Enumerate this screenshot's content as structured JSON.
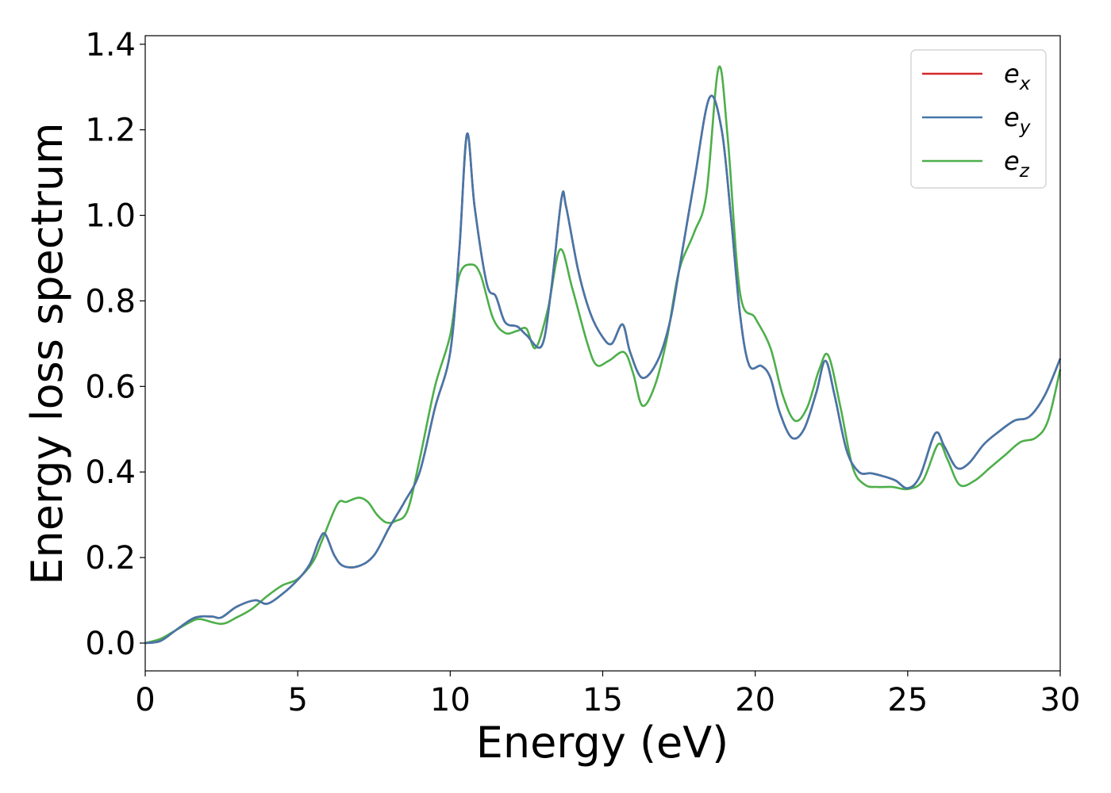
{
  "chart_data": {
    "type": "line",
    "title": "",
    "xlabel": "Energy (eV)",
    "ylabel": "Energy loss spectrum",
    "xlim": [
      0,
      30
    ],
    "ylim": [
      -0.065,
      1.42
    ],
    "xticks": [
      0,
      5,
      10,
      15,
      20,
      25,
      30
    ],
    "xtick_labels": [
      "0",
      "5",
      "10",
      "15",
      "20",
      "25",
      "30"
    ],
    "yticks": [
      0.0,
      0.2,
      0.4,
      0.6,
      0.8,
      1.0,
      1.2,
      1.4
    ],
    "ytick_labels": [
      "0.0",
      "0.2",
      "0.4",
      "0.6",
      "0.8",
      "1.0",
      "1.2",
      "1.4"
    ],
    "grid": false,
    "legend_position": "top-right",
    "series": [
      {
        "name": "e_x",
        "label_main": "e",
        "label_sub": "x",
        "color": "#d62728",
        "points": [
          [
            0,
            0
          ],
          [
            0.5,
            0.005
          ],
          [
            1,
            0.03
          ],
          [
            1.5,
            0.055
          ],
          [
            1.8,
            0.062
          ],
          [
            2.2,
            0.062
          ],
          [
            2.5,
            0.06
          ],
          [
            3,
            0.085
          ],
          [
            3.6,
            0.1
          ],
          [
            4,
            0.092
          ],
          [
            4.5,
            0.115
          ],
          [
            5,
            0.148
          ],
          [
            5.4,
            0.185
          ],
          [
            5.7,
            0.24
          ],
          [
            5.9,
            0.255
          ],
          [
            6.2,
            0.205
          ],
          [
            6.5,
            0.18
          ],
          [
            7,
            0.18
          ],
          [
            7.5,
            0.205
          ],
          [
            8,
            0.27
          ],
          [
            8.5,
            0.33
          ],
          [
            9,
            0.4
          ],
          [
            9.5,
            0.55
          ],
          [
            10,
            0.68
          ],
          [
            10.3,
            0.92
          ],
          [
            10.55,
            1.19
          ],
          [
            10.8,
            1.02
          ],
          [
            11.2,
            0.84
          ],
          [
            11.5,
            0.81
          ],
          [
            11.8,
            0.75
          ],
          [
            12.2,
            0.74
          ],
          [
            12.5,
            0.72
          ],
          [
            13,
            0.695
          ],
          [
            13.3,
            0.82
          ],
          [
            13.65,
            1.04
          ],
          [
            13.8,
            1.02
          ],
          [
            14.2,
            0.87
          ],
          [
            14.6,
            0.77
          ],
          [
            15,
            0.715
          ],
          [
            15.3,
            0.7
          ],
          [
            15.65,
            0.745
          ],
          [
            15.9,
            0.68
          ],
          [
            16.3,
            0.62
          ],
          [
            16.8,
            0.66
          ],
          [
            17.2,
            0.75
          ],
          [
            17.5,
            0.87
          ],
          [
            18,
            1.08
          ],
          [
            18.5,
            1.275
          ],
          [
            18.9,
            1.2
          ],
          [
            19.2,
            1.0
          ],
          [
            19.5,
            0.77
          ],
          [
            19.8,
            0.65
          ],
          [
            20.2,
            0.648
          ],
          [
            20.5,
            0.62
          ],
          [
            20.8,
            0.54
          ],
          [
            21.2,
            0.48
          ],
          [
            21.6,
            0.5
          ],
          [
            22,
            0.585
          ],
          [
            22.3,
            0.66
          ],
          [
            22.6,
            0.58
          ],
          [
            23,
            0.45
          ],
          [
            23.4,
            0.4
          ],
          [
            23.8,
            0.397
          ],
          [
            24.2,
            0.39
          ],
          [
            24.6,
            0.38
          ],
          [
            25,
            0.362
          ],
          [
            25.4,
            0.39
          ],
          [
            25.9,
            0.49
          ],
          [
            26.2,
            0.46
          ],
          [
            26.6,
            0.41
          ],
          [
            27,
            0.42
          ],
          [
            27.5,
            0.465
          ],
          [
            28,
            0.495
          ],
          [
            28.5,
            0.52
          ],
          [
            29,
            0.53
          ],
          [
            29.5,
            0.58
          ],
          [
            30,
            0.665
          ]
        ]
      },
      {
        "name": "e_y",
        "label_main": "e",
        "label_sub": "y",
        "color": "#4477aa",
        "points": [
          [
            0,
            0
          ],
          [
            0.5,
            0.005
          ],
          [
            1,
            0.03
          ],
          [
            1.5,
            0.055
          ],
          [
            1.8,
            0.062
          ],
          [
            2.2,
            0.062
          ],
          [
            2.5,
            0.06
          ],
          [
            3,
            0.085
          ],
          [
            3.6,
            0.1
          ],
          [
            4,
            0.092
          ],
          [
            4.5,
            0.115
          ],
          [
            5,
            0.148
          ],
          [
            5.4,
            0.185
          ],
          [
            5.7,
            0.24
          ],
          [
            5.9,
            0.255
          ],
          [
            6.2,
            0.205
          ],
          [
            6.5,
            0.18
          ],
          [
            7,
            0.18
          ],
          [
            7.5,
            0.205
          ],
          [
            8,
            0.27
          ],
          [
            8.5,
            0.33
          ],
          [
            9,
            0.4
          ],
          [
            9.5,
            0.55
          ],
          [
            10,
            0.68
          ],
          [
            10.3,
            0.92
          ],
          [
            10.55,
            1.19
          ],
          [
            10.8,
            1.02
          ],
          [
            11.2,
            0.84
          ],
          [
            11.5,
            0.81
          ],
          [
            11.8,
            0.75
          ],
          [
            12.2,
            0.74
          ],
          [
            12.5,
            0.72
          ],
          [
            13,
            0.695
          ],
          [
            13.3,
            0.82
          ],
          [
            13.65,
            1.04
          ],
          [
            13.8,
            1.02
          ],
          [
            14.2,
            0.87
          ],
          [
            14.6,
            0.77
          ],
          [
            15,
            0.715
          ],
          [
            15.3,
            0.7
          ],
          [
            15.65,
            0.745
          ],
          [
            15.9,
            0.68
          ],
          [
            16.3,
            0.62
          ],
          [
            16.8,
            0.66
          ],
          [
            17.2,
            0.75
          ],
          [
            17.5,
            0.87
          ],
          [
            18,
            1.08
          ],
          [
            18.5,
            1.275
          ],
          [
            18.9,
            1.2
          ],
          [
            19.2,
            1.0
          ],
          [
            19.5,
            0.77
          ],
          [
            19.8,
            0.65
          ],
          [
            20.2,
            0.648
          ],
          [
            20.5,
            0.62
          ],
          [
            20.8,
            0.54
          ],
          [
            21.2,
            0.48
          ],
          [
            21.6,
            0.5
          ],
          [
            22,
            0.585
          ],
          [
            22.3,
            0.66
          ],
          [
            22.6,
            0.58
          ],
          [
            23,
            0.45
          ],
          [
            23.4,
            0.4
          ],
          [
            23.8,
            0.397
          ],
          [
            24.2,
            0.39
          ],
          [
            24.6,
            0.38
          ],
          [
            25,
            0.362
          ],
          [
            25.4,
            0.39
          ],
          [
            25.9,
            0.49
          ],
          [
            26.2,
            0.46
          ],
          [
            26.6,
            0.41
          ],
          [
            27,
            0.42
          ],
          [
            27.5,
            0.465
          ],
          [
            28,
            0.495
          ],
          [
            28.5,
            0.52
          ],
          [
            29,
            0.53
          ],
          [
            29.5,
            0.58
          ],
          [
            30,
            0.665
          ]
        ]
      },
      {
        "name": "e_z",
        "label_main": "e",
        "label_sub": "z",
        "color": "#4daf4a",
        "points": [
          [
            0,
            0
          ],
          [
            0.5,
            0.01
          ],
          [
            1,
            0.03
          ],
          [
            1.5,
            0.05
          ],
          [
            1.8,
            0.056
          ],
          [
            2.5,
            0.045
          ],
          [
            3,
            0.06
          ],
          [
            3.5,
            0.08
          ],
          [
            4,
            0.11
          ],
          [
            4.5,
            0.135
          ],
          [
            5,
            0.15
          ],
          [
            5.5,
            0.19
          ],
          [
            5.8,
            0.24
          ],
          [
            6.3,
            0.325
          ],
          [
            6.6,
            0.33
          ],
          [
            7,
            0.34
          ],
          [
            7.3,
            0.33
          ],
          [
            7.6,
            0.3
          ],
          [
            7.9,
            0.282
          ],
          [
            8.2,
            0.285
          ],
          [
            8.6,
            0.31
          ],
          [
            9,
            0.43
          ],
          [
            9.5,
            0.6
          ],
          [
            10,
            0.72
          ],
          [
            10.3,
            0.86
          ],
          [
            10.7,
            0.885
          ],
          [
            11,
            0.86
          ],
          [
            11.4,
            0.76
          ],
          [
            11.8,
            0.725
          ],
          [
            12.2,
            0.73
          ],
          [
            12.5,
            0.735
          ],
          [
            12.8,
            0.69
          ],
          [
            13.2,
            0.78
          ],
          [
            13.6,
            0.92
          ],
          [
            14,
            0.83
          ],
          [
            14.5,
            0.7
          ],
          [
            14.8,
            0.65
          ],
          [
            15.2,
            0.66
          ],
          [
            15.7,
            0.68
          ],
          [
            16,
            0.63
          ],
          [
            16.3,
            0.555
          ],
          [
            16.7,
            0.6
          ],
          [
            17.1,
            0.71
          ],
          [
            17.5,
            0.87
          ],
          [
            18,
            0.96
          ],
          [
            18.4,
            1.05
          ],
          [
            18.8,
            1.345
          ],
          [
            19.1,
            1.18
          ],
          [
            19.5,
            0.82
          ],
          [
            20,
            0.76
          ],
          [
            20.5,
            0.69
          ],
          [
            20.9,
            0.58
          ],
          [
            21.3,
            0.52
          ],
          [
            21.7,
            0.55
          ],
          [
            22.1,
            0.64
          ],
          [
            22.4,
            0.672
          ],
          [
            22.8,
            0.55
          ],
          [
            23.2,
            0.41
          ],
          [
            23.6,
            0.37
          ],
          [
            24,
            0.365
          ],
          [
            24.5,
            0.365
          ],
          [
            25,
            0.36
          ],
          [
            25.5,
            0.38
          ],
          [
            26,
            0.465
          ],
          [
            26.3,
            0.43
          ],
          [
            26.7,
            0.37
          ],
          [
            27.2,
            0.38
          ],
          [
            27.7,
            0.41
          ],
          [
            28.2,
            0.44
          ],
          [
            28.7,
            0.47
          ],
          [
            29.2,
            0.48
          ],
          [
            29.6,
            0.52
          ],
          [
            30,
            0.64
          ]
        ]
      }
    ]
  }
}
